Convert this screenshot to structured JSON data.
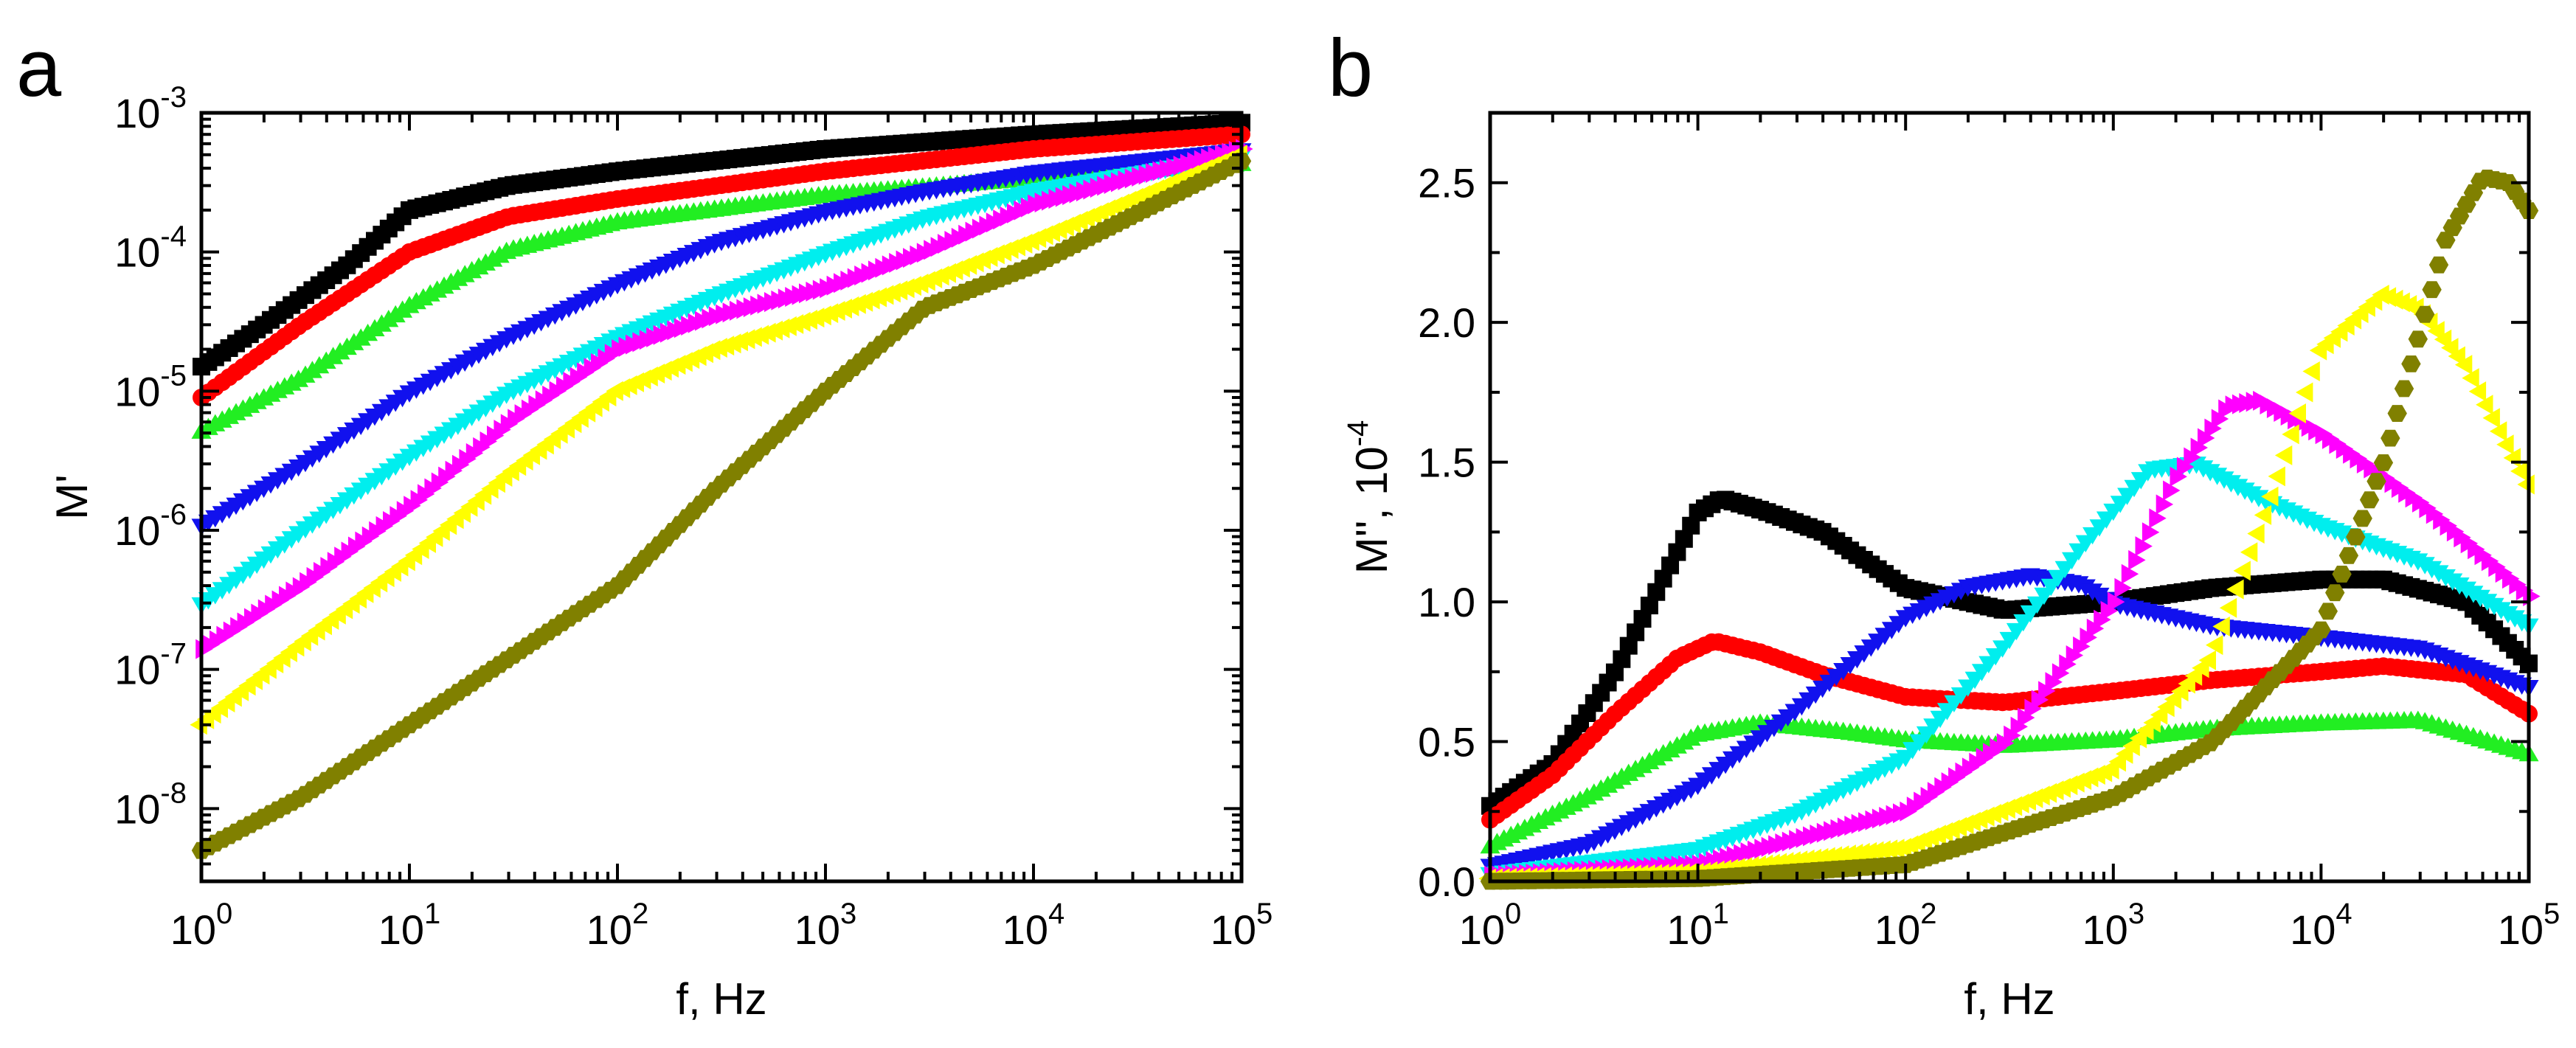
{
  "colors": {
    "black": "#000000",
    "red": "#ff0000",
    "green": "#22ee22",
    "blue": "#1111ee",
    "cyan": "#00eeee",
    "magenta": "#ff00ff",
    "yellow": "#ffff00",
    "olive": "#808000"
  },
  "chart_data": [
    {
      "panel": "a",
      "type": "scatter",
      "title": "",
      "xlabel": "f, Hz",
      "ylabel": "M'",
      "xscale": "log",
      "yscale": "log",
      "xlim": [
        1,
        100000
      ],
      "ylim": [
        3e-09,
        0.001
      ],
      "x_ticks": [
        {
          "base": "10",
          "exp": "0",
          "value": 1
        },
        {
          "base": "10",
          "exp": "1",
          "value": 10
        },
        {
          "base": "10",
          "exp": "2",
          "value": 100
        },
        {
          "base": "10",
          "exp": "3",
          "value": 1000
        },
        {
          "base": "10",
          "exp": "4",
          "value": 10000
        },
        {
          "base": "10",
          "exp": "5",
          "value": 100000
        }
      ],
      "y_ticks": [
        {
          "base": "10",
          "exp": "-8",
          "value": 1e-08
        },
        {
          "base": "10",
          "exp": "-7",
          "value": 1e-07
        },
        {
          "base": "10",
          "exp": "-6",
          "value": 1e-06
        },
        {
          "base": "10",
          "exp": "-5",
          "value": 1e-05
        },
        {
          "base": "10",
          "exp": "-4",
          "value": 0.0001
        },
        {
          "base": "10",
          "exp": "-3",
          "value": 0.001
        }
      ],
      "series": [
        {
          "name": "black",
          "marker": "square",
          "color": "#000000",
          "x": [
            1,
            2,
            5,
            10,
            30,
            100,
            1000,
            10000,
            100000
          ],
          "y": [
            1.5e-05,
            3e-05,
            8e-05,
            0.0002,
            0.0003,
            0.00038,
            0.00055,
            0.0007,
            0.00085
          ]
        },
        {
          "name": "red",
          "marker": "circle",
          "color": "#ff0000",
          "x": [
            1,
            3,
            10,
            30,
            100,
            1000,
            10000,
            100000
          ],
          "y": [
            9e-06,
            3e-05,
            0.0001,
            0.00018,
            0.00024,
            0.00038,
            0.00055,
            0.0007
          ]
        },
        {
          "name": "green",
          "marker": "triangle-up",
          "color": "#22ee22",
          "x": [
            1,
            3,
            10,
            30,
            100,
            1000,
            10000,
            100000
          ],
          "y": [
            5e-06,
            1.2e-05,
            4e-05,
            0.0001,
            0.00016,
            0.00025,
            0.00033,
            0.00042
          ]
        },
        {
          "name": "blue",
          "marker": "triangle-down",
          "color": "#1111ee",
          "x": [
            1,
            3,
            10,
            30,
            100,
            300,
            1000,
            3000,
            10000,
            100000
          ],
          "y": [
            1.1e-06,
            3e-06,
            1e-05,
            2.5e-05,
            6e-05,
            0.00012,
            0.0002,
            0.00028,
            0.00038,
            0.00055
          ]
        },
        {
          "name": "cyan",
          "marker": "triangle-down",
          "color": "#00eeee",
          "x": [
            1,
            3,
            10,
            30,
            100,
            300,
            1000,
            3000,
            10000,
            100000
          ],
          "y": [
            3e-07,
            1e-06,
            3.5e-06,
            1e-05,
            2.5e-05,
            5e-05,
            0.0001,
            0.00018,
            0.00028,
            0.0005
          ]
        },
        {
          "name": "magenta",
          "marker": "triangle-right",
          "color": "#ff00ff",
          "x": [
            1,
            3,
            10,
            30,
            100,
            300,
            1000,
            3000,
            10000,
            100000
          ],
          "y": [
            1.4e-07,
            4e-07,
            1.5e-06,
            6e-06,
            2e-05,
            3.5e-05,
            5.5e-05,
            0.0001,
            0.00022,
            0.00055
          ]
        },
        {
          "name": "yellow",
          "marker": "triangle-left",
          "color": "#ffff00",
          "x": [
            1,
            3,
            10,
            30,
            100,
            300,
            1000,
            3000,
            10000,
            100000
          ],
          "y": [
            4e-08,
            1.5e-07,
            6e-07,
            2.5e-06,
            1e-05,
            2e-05,
            3.5e-05,
            6e-05,
            0.00012,
            0.0005
          ]
        },
        {
          "name": "olive",
          "marker": "hexagon",
          "color": "#808000",
          "x": [
            1,
            3,
            10,
            30,
            100,
            300,
            1000,
            3000,
            10000,
            100000
          ],
          "y": [
            5e-09,
            1.2e-08,
            4e-08,
            1.2e-07,
            4e-07,
            2e-06,
            1e-05,
            4e-05,
            8e-05,
            0.00045
          ]
        }
      ]
    },
    {
      "panel": "b",
      "type": "scatter",
      "title": "",
      "xlabel": "f, Hz",
      "ylabel": "M'', 10",
      "ylabel_exp": "-4",
      "xscale": "log",
      "yscale": "linear",
      "xlim": [
        1,
        100000
      ],
      "ylim": [
        0,
        2.75
      ],
      "x_ticks": [
        {
          "base": "10",
          "exp": "0",
          "value": 1
        },
        {
          "base": "10",
          "exp": "1",
          "value": 10
        },
        {
          "base": "10",
          "exp": "2",
          "value": 100
        },
        {
          "base": "10",
          "exp": "3",
          "value": 1000
        },
        {
          "base": "10",
          "exp": "4",
          "value": 10000
        },
        {
          "base": "10",
          "exp": "5",
          "value": 100000
        }
      ],
      "y_ticks": [
        {
          "label": "0.0",
          "value": 0
        },
        {
          "label": "0.5",
          "value": 0.5
        },
        {
          "label": "1.0",
          "value": 1.0
        },
        {
          "label": "1.5",
          "value": 1.5
        },
        {
          "label": "2.0",
          "value": 2.0
        },
        {
          "label": "2.5",
          "value": 2.5
        }
      ],
      "series": [
        {
          "name": "black",
          "marker": "square",
          "color": "#000000",
          "x": [
            1,
            2,
            4,
            7,
            10,
            13,
            20,
            40,
            100,
            300,
            1000,
            3000,
            10000,
            20000,
            50000,
            100000
          ],
          "y": [
            0.27,
            0.42,
            0.75,
            1.1,
            1.32,
            1.37,
            1.33,
            1.25,
            1.05,
            0.97,
            1.0,
            1.05,
            1.08,
            1.08,
            1.0,
            0.78
          ]
        },
        {
          "name": "red",
          "marker": "circle",
          "color": "#ff0000",
          "x": [
            1,
            2,
            4,
            8,
            12,
            20,
            40,
            100,
            300,
            1000,
            3000,
            10000,
            20000,
            50000,
            100000
          ],
          "y": [
            0.22,
            0.38,
            0.6,
            0.8,
            0.86,
            0.82,
            0.74,
            0.66,
            0.64,
            0.68,
            0.72,
            0.75,
            0.77,
            0.74,
            0.6
          ]
        },
        {
          "name": "green",
          "marker": "triangle-up",
          "color": "#22ee22",
          "x": [
            1,
            3,
            10,
            20,
            50,
            100,
            300,
            1000,
            3000,
            10000,
            30000,
            100000
          ],
          "y": [
            0.12,
            0.3,
            0.52,
            0.56,
            0.53,
            0.5,
            0.48,
            0.5,
            0.54,
            0.56,
            0.57,
            0.45
          ]
        },
        {
          "name": "blue",
          "marker": "triangle-down",
          "color": "#1111ee",
          "x": [
            1,
            3,
            10,
            30,
            100,
            200,
            400,
            700,
            1000,
            3000,
            10000,
            30000,
            100000
          ],
          "y": [
            0.06,
            0.14,
            0.35,
            0.62,
            0.95,
            1.06,
            1.1,
            1.07,
            1.0,
            0.92,
            0.88,
            0.84,
            0.7
          ]
        },
        {
          "name": "cyan",
          "marker": "triangle-down",
          "color": "#00eeee",
          "x": [
            1,
            10,
            30,
            100,
            300,
            700,
            1500,
            2500,
            5000,
            10000,
            30000,
            100000
          ],
          "y": [
            0.03,
            0.12,
            0.25,
            0.45,
            0.85,
            1.2,
            1.48,
            1.5,
            1.38,
            1.28,
            1.15,
            0.92
          ]
        },
        {
          "name": "magenta",
          "marker": "triangle-right",
          "color": "#ff00ff",
          "x": [
            1,
            10,
            100,
            300,
            1000,
            2000,
            3500,
            5000,
            10000,
            30000,
            100000
          ],
          "y": [
            0.02,
            0.06,
            0.25,
            0.5,
            1.0,
            1.45,
            1.7,
            1.72,
            1.6,
            1.35,
            1.02
          ]
        },
        {
          "name": "yellow",
          "marker": "triangle-left",
          "color": "#ffff00",
          "x": [
            1,
            10,
            100,
            1000,
            3000,
            6000,
            10000,
            20000,
            30000,
            50000,
            100000
          ],
          "y": [
            0.01,
            0.03,
            0.12,
            0.4,
            0.8,
            1.4,
            1.9,
            2.1,
            2.05,
            1.85,
            1.42
          ]
        },
        {
          "name": "olive",
          "marker": "hexagon",
          "color": "#808000",
          "x": [
            1,
            10,
            100,
            1000,
            3000,
            10000,
            20000,
            40000,
            60000,
            80000,
            100000
          ],
          "y": [
            0.0,
            0.01,
            0.06,
            0.3,
            0.5,
            0.9,
            1.5,
            2.3,
            2.52,
            2.5,
            2.4
          ]
        }
      ]
    }
  ]
}
